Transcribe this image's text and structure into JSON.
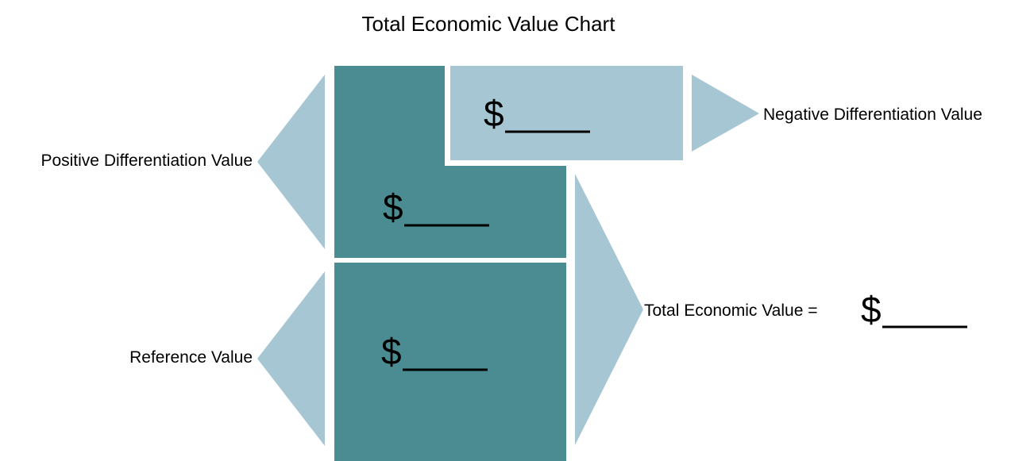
{
  "title": "Total Economic Value Chart",
  "colors": {
    "dark_teal": "#4a8c91",
    "light_blue": "#a6c6d3",
    "line": "#000000"
  },
  "labels": {
    "positive_differentiation": "Positive Differentiation Value",
    "negative_differentiation": "Negative Differentiation Value",
    "reference": "Reference Value",
    "total_economic_value": "Total Economic Value ="
  },
  "blanks": {
    "positive_differentiation": "$",
    "negative_differentiation": "$",
    "reference": "$",
    "total_economic_value": "$"
  }
}
